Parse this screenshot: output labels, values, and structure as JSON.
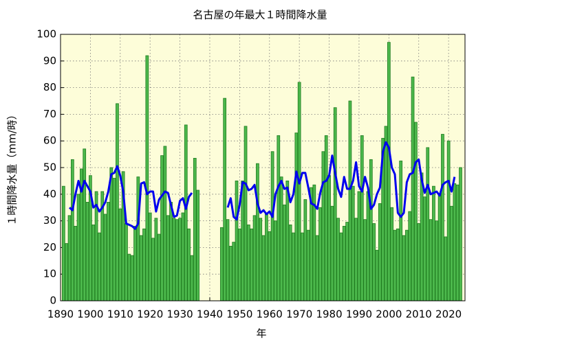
{
  "chart_data": {
    "type": "bar",
    "title": "名古屋の年最大１時間降水量",
    "xlabel": "年",
    "ylabel": "１時間降水量（mm/時）",
    "xlim": [
      1890,
      2025.5
    ],
    "ylim": [
      0,
      100
    ],
    "xticks": [
      1890,
      1900,
      1910,
      1920,
      1930,
      1940,
      1950,
      1960,
      1970,
      1980,
      1990,
      2000,
      2010,
      2020
    ],
    "yticks": [
      0,
      10,
      20,
      30,
      40,
      50,
      60,
      70,
      80,
      90,
      100
    ],
    "grid": true,
    "series": [
      {
        "type": "bar",
        "color": "#4cb84c",
        "x": [
          1891,
          1892,
          1893,
          1894,
          1895,
          1896,
          1897,
          1898,
          1899,
          1900,
          1901,
          1902,
          1903,
          1904,
          1905,
          1906,
          1907,
          1908,
          1909,
          1910,
          1911,
          1912,
          1913,
          1914,
          1915,
          1916,
          1917,
          1918,
          1919,
          1920,
          1921,
          1922,
          1923,
          1924,
          1925,
          1926,
          1927,
          1928,
          1929,
          1930,
          1931,
          1932,
          1933,
          1934,
          1935,
          1936,
          1937,
          1938,
          1939,
          1940,
          1941,
          1942,
          1943,
          1944,
          1945,
          1946,
          1947,
          1948,
          1949,
          1950,
          1951,
          1952,
          1953,
          1954,
          1955,
          1956,
          1957,
          1958,
          1959,
          1960,
          1961,
          1962,
          1963,
          1964,
          1965,
          1966,
          1967,
          1968,
          1969,
          1970,
          1971,
          1972,
          1973,
          1974,
          1975,
          1976,
          1977,
          1978,
          1979,
          1980,
          1981,
          1982,
          1983,
          1984,
          1985,
          1986,
          1987,
          1988,
          1989,
          1990,
          1991,
          1992,
          1993,
          1994,
          1995,
          1996,
          1997,
          1998,
          1999,
          2000,
          2001,
          2002,
          2003,
          2004,
          2005,
          2006,
          2007,
          2008,
          2009,
          2010,
          2011,
          2012,
          2013,
          2014,
          2015,
          2016,
          2017,
          2018,
          2019,
          2020,
          2021,
          2022,
          2023,
          2024
        ],
        "values": [
          43,
          21.5,
          32,
          53,
          28,
          40,
          49.5,
          57,
          37,
          47,
          28.5,
          41,
          25.5,
          41,
          32.5,
          37,
          50,
          46,
          74,
          34.5,
          48.5,
          29,
          17.5,
          17,
          28,
          46.5,
          24.5,
          27,
          92,
          33,
          23.5,
          31,
          25,
          54.5,
          58,
          32,
          37,
          31,
          30.5,
          31,
          33,
          66,
          27,
          17,
          53.5,
          41.5,
          null,
          null,
          null,
          null,
          null,
          null,
          null,
          27.5,
          76,
          30.5,
          20.5,
          22,
          45,
          27,
          45,
          65.5,
          28.5,
          27,
          32,
          51.5,
          31,
          24.5,
          33,
          26,
          56,
          30,
          62,
          46.5,
          36,
          45,
          28.5,
          25.5,
          63,
          82,
          25.5,
          38,
          26.5,
          42.5,
          43.5,
          24.5,
          35,
          56,
          62,
          47,
          35.5,
          72.5,
          31,
          25.5,
          28,
          29.5,
          75,
          43,
          31,
          41,
          62,
          30.5,
          41,
          53,
          29,
          19,
          36.5,
          61,
          65.5,
          97,
          35,
          26.5,
          27,
          52.5,
          24.5,
          26.5,
          33.5,
          84,
          67,
          29,
          48,
          39,
          57.5,
          30.5,
          43,
          30,
          40,
          62.5,
          24,
          60,
          35.5,
          44,
          43.5,
          50
        ]
      },
      {
        "type": "line",
        "color": "#0000ee",
        "x": [
          1893,
          1894,
          1895,
          1896,
          1897,
          1898,
          1899,
          1900,
          1901,
          1902,
          1903,
          1904,
          1905,
          1906,
          1907,
          1908,
          1909,
          1910,
          1911,
          1912,
          1913,
          1914,
          1915,
          1916,
          1917,
          1918,
          1919,
          1920,
          1921,
          1922,
          1923,
          1924,
          1925,
          1926,
          1927,
          1928,
          1929,
          1930,
          1931,
          1932,
          1933,
          1934,
          1935,
          1936,
          1937,
          1938,
          1939,
          1940,
          1941,
          1942,
          1943,
          1944,
          1945,
          1946,
          1947,
          1948,
          1949,
          1950,
          1951,
          1952,
          1953,
          1954,
          1955,
          1956,
          1957,
          1958,
          1959,
          1960,
          1961,
          1962,
          1963,
          1964,
          1965,
          1966,
          1967,
          1968,
          1969,
          1970,
          1971,
          1972,
          1973,
          1974,
          1975,
          1976,
          1977,
          1978,
          1979,
          1980,
          1981,
          1982,
          1983,
          1984,
          1985,
          1986,
          1987,
          1988,
          1989,
          1990,
          1991,
          1992,
          1993,
          1994,
          1995,
          1996,
          1997,
          1998,
          1999,
          2000,
          2001,
          2002,
          2003,
          2004,
          2005,
          2006,
          2007,
          2008,
          2009,
          2010,
          2011,
          2012,
          2013,
          2014,
          2015,
          2016,
          2017,
          2018,
          2019,
          2020,
          2021,
          2022
        ],
        "values": [
          35,
          34,
          40,
          45,
          41,
          45,
          43,
          41,
          35,
          36,
          33.5,
          35,
          37,
          41,
          47.5,
          48,
          50.5,
          47,
          41,
          29,
          28.5,
          28,
          27,
          29,
          44,
          44.5,
          40,
          41,
          41,
          33.5,
          38,
          39.5,
          41,
          40.5,
          36,
          31.5,
          32,
          37.5,
          38.5,
          34.5,
          39,
          40.5,
          null,
          null,
          null,
          null,
          null,
          null,
          null,
          null,
          null,
          null,
          null,
          35,
          38.5,
          31.5,
          30.5,
          36,
          44.5,
          44,
          41.5,
          42,
          43.5,
          36.5,
          33,
          34,
          32.5,
          33.5,
          31.5,
          40,
          43,
          45,
          42,
          42.5,
          37,
          40,
          48.5,
          44,
          48,
          48,
          42.5,
          36.5,
          36,
          34.5,
          40.5,
          44.5,
          45,
          47,
          54.5,
          48,
          42,
          39,
          46.5,
          42,
          42,
          45,
          52,
          43,
          41,
          46.5,
          42.5,
          34.5,
          36,
          40,
          42.5,
          56,
          59.5,
          57.5,
          50,
          47.5,
          33,
          31.5,
          33,
          44.5,
          47.5,
          48,
          52,
          53,
          45.5,
          40.5,
          43.5,
          40,
          40.5,
          41,
          39.5,
          43.5,
          44.5,
          45,
          41,
          46.5
        ]
      }
    ]
  }
}
